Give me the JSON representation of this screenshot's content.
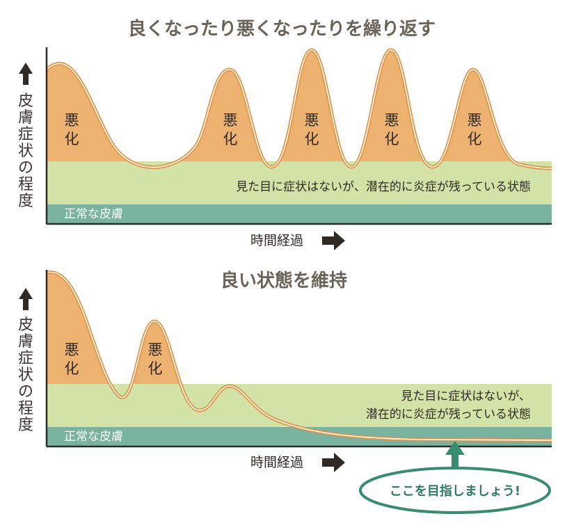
{
  "colors": {
    "flare_fill": "#edb270",
    "flare_line": "#e3923f",
    "latent_band": "#d3e2a6",
    "normal_band": "#79b3a0",
    "axis": "#2f2a26",
    "title": "#6b6358",
    "goal_green": "#3a8c70"
  },
  "panel1": {
    "title": "良くなったり悪くなったりを繰り返す",
    "y_label": [
      "皮",
      "膚",
      "症",
      "状",
      "の",
      "程",
      "度"
    ],
    "flare_label": [
      "悪",
      "化"
    ],
    "latent_text": "見た目に症状はないが、潜在的に炎症が残っている状態",
    "normal_text": "正常な皮膚",
    "time_label": "時間経過"
  },
  "panel2": {
    "title": "良い状態を維持",
    "y_label": [
      "皮",
      "膚",
      "症",
      "状",
      "の",
      "程",
      "度"
    ],
    "flare_label": [
      "悪",
      "化"
    ],
    "latent_text_1": "見た目に症状はないが、",
    "latent_text_2": "潜在的に炎症が残っている状態",
    "normal_text": "正常な皮膚",
    "time_label": "時間経過",
    "goal_text": "ここを目指しましょう!"
  }
}
